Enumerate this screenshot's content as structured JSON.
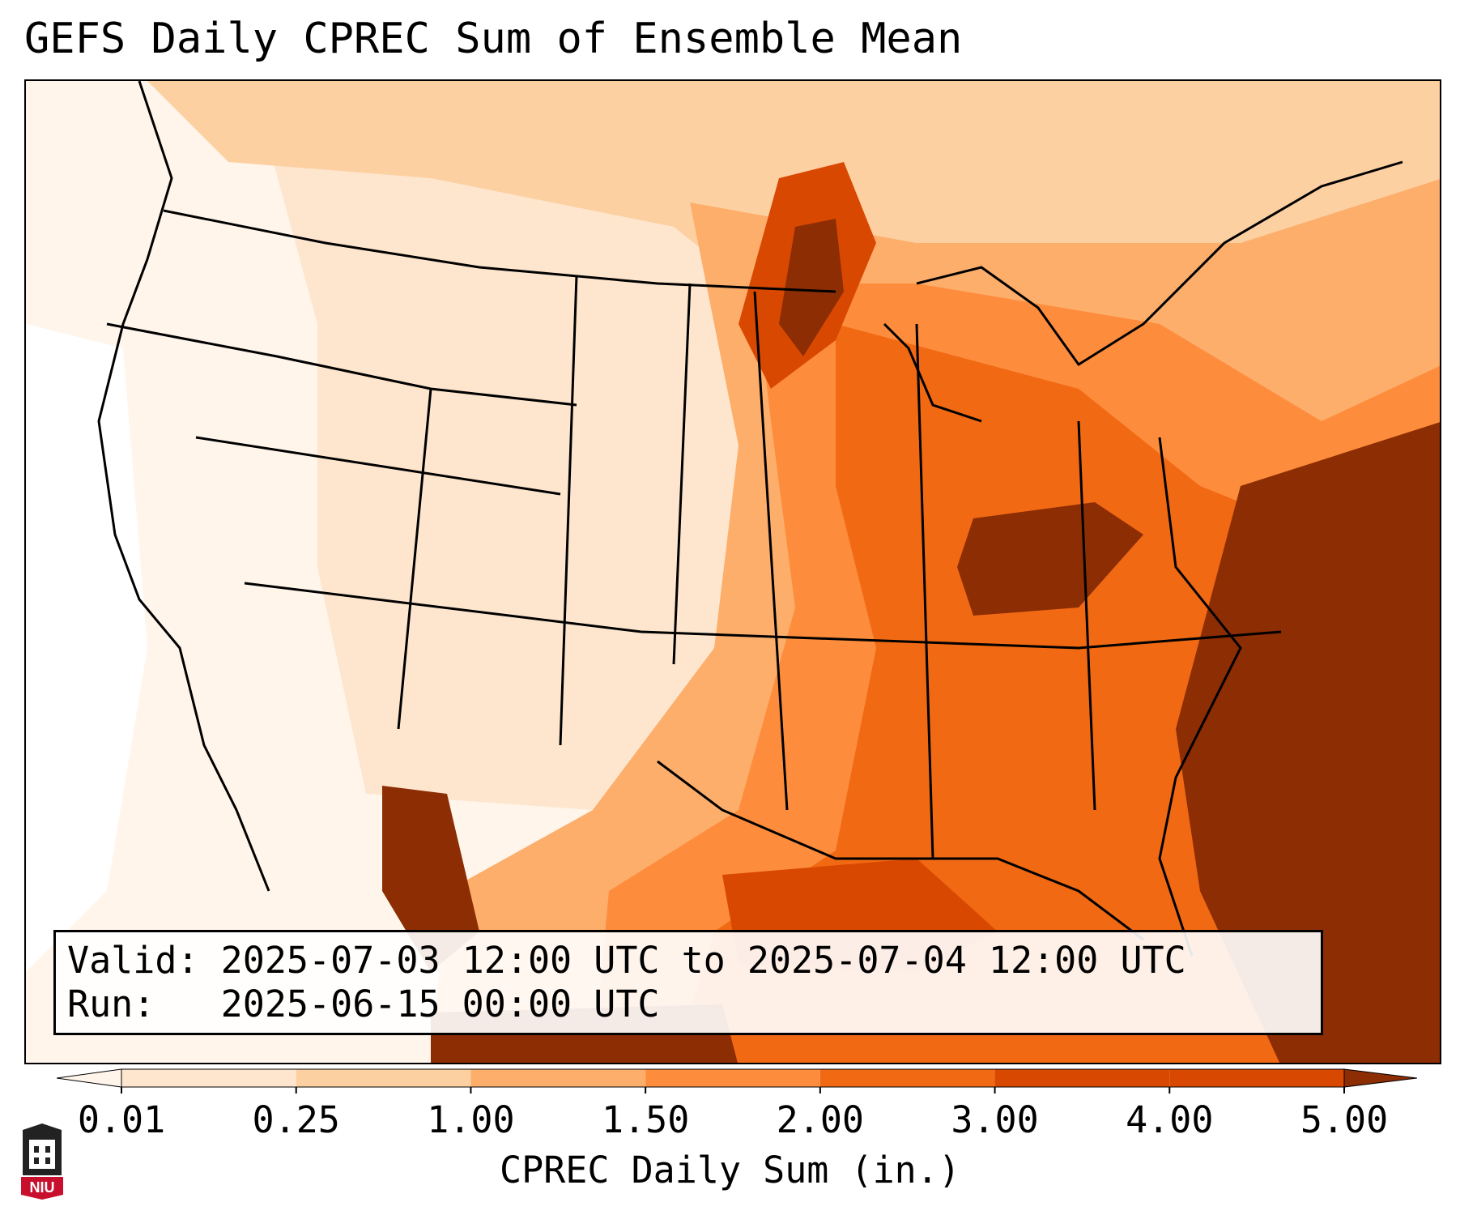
{
  "title": "GEFS Daily CPREC Sum of Ensemble Mean",
  "info": {
    "valid_label": "Valid:",
    "valid_value": "2025-07-03 12:00 UTC to 2025-07-04 12:00 UTC",
    "run_label": "Run:",
    "run_value": "2025-06-15 00:00 UTC"
  },
  "colorbar": {
    "label": "CPREC Daily Sum (in.)",
    "ticks": [
      "0.01",
      "0.25",
      "1.00",
      "1.50",
      "2.00",
      "3.00",
      "4.00",
      "5.00"
    ],
    "colors": [
      "#fff5eb",
      "#fee6ce",
      "#fdd0a2",
      "#fdae6b",
      "#fd8d3c",
      "#f16913",
      "#d94801",
      "#8c2d04"
    ],
    "extend": "both"
  },
  "logo": {
    "text": "NIU",
    "accent": "#c8102e"
  }
}
